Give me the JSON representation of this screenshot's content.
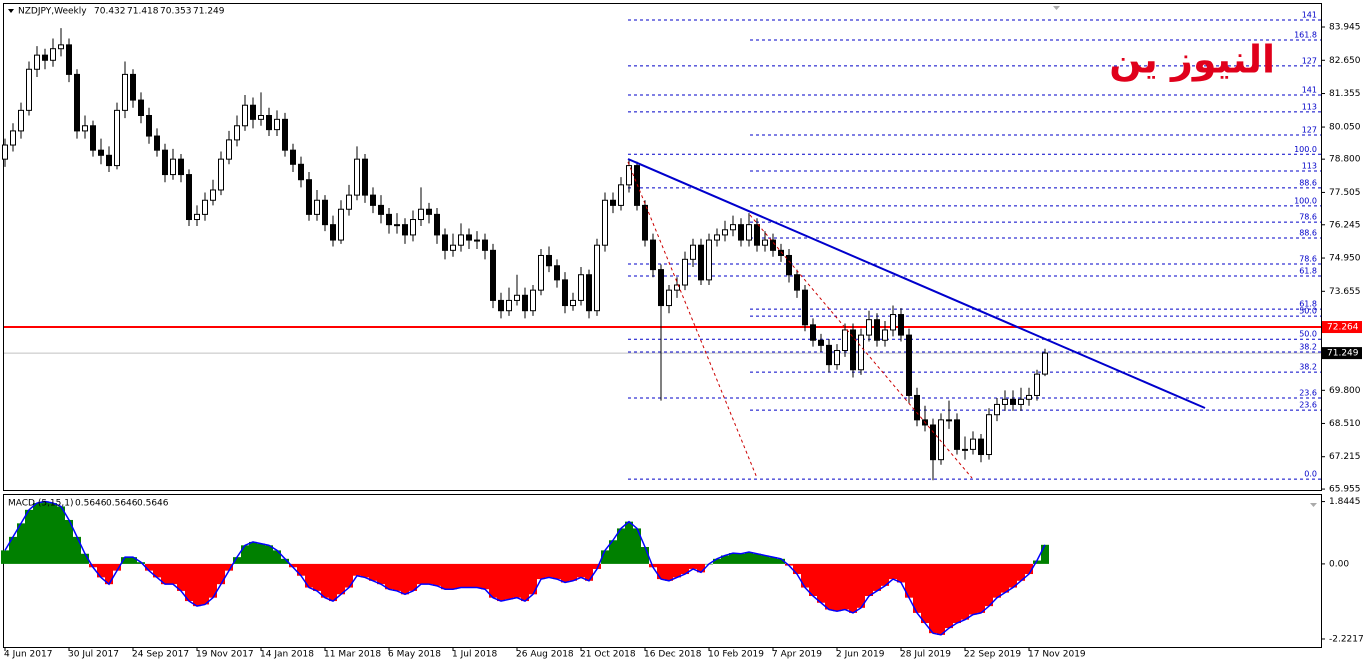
{
  "chart_data": [
    {
      "type": "candlestick",
      "symbol": "NZDJPY,Weekly",
      "header_values": [
        70.432,
        71.418,
        70.353,
        71.249
      ],
      "watermark": "النيوز ين",
      "categories": [
        "4 Jun 2017",
        null,
        null,
        null,
        null,
        null,
        null,
        null,
        "30 Jul 2017",
        null,
        null,
        null,
        null,
        null,
        null,
        null,
        "24 Sep 2017",
        null,
        null,
        null,
        null,
        null,
        null,
        null,
        "19 Nov 2017",
        null,
        null,
        null,
        null,
        null,
        null,
        null,
        "14 Jan 2018",
        null,
        null,
        null,
        null,
        null,
        null,
        null,
        "11 Mar 2018",
        null,
        null,
        null,
        null,
        null,
        null,
        null,
        "6 May 2018",
        null,
        null,
        null,
        null,
        null,
        null,
        null,
        "1 Jul 2018",
        null,
        null,
        null,
        null,
        null,
        null,
        null,
        "26 Aug 2018",
        null,
        null,
        null,
        null,
        null,
        null,
        null,
        "21 Oct 2018",
        null,
        null,
        null,
        null,
        null,
        null,
        null,
        "16 Dec 2018",
        null,
        null,
        null,
        null,
        null,
        null,
        null,
        "10 Feb 2019",
        null,
        null,
        null,
        null,
        null,
        null,
        null,
        "7 Apr 2019",
        null,
        null,
        null,
        null,
        null,
        null,
        null,
        "2 Jun 2019",
        null,
        null,
        null,
        null,
        null,
        null,
        null,
        "28 Jul 2019",
        null,
        null,
        null,
        null,
        null,
        null,
        null,
        "22 Sep 2019",
        null,
        null,
        null,
        null,
        null,
        null,
        null,
        "17 Nov 2019",
        null,
        null
      ],
      "ohlc": [
        [
          78.8,
          79.6,
          78.5,
          79.35
        ],
        [
          79.35,
          80.2,
          79.1,
          79.9
        ],
        [
          79.9,
          81.0,
          79.6,
          80.7
        ],
        [
          80.7,
          82.6,
          80.5,
          82.3
        ],
        [
          82.3,
          83.2,
          82.0,
          82.85
        ],
        [
          82.85,
          83.1,
          82.3,
          82.65
        ],
        [
          82.65,
          83.5,
          82.4,
          83.1
        ],
        [
          83.1,
          83.9,
          82.8,
          83.25
        ],
        [
          83.25,
          83.5,
          81.8,
          82.1
        ],
        [
          82.1,
          82.3,
          79.6,
          79.9
        ],
        [
          79.9,
          80.5,
          79.6,
          80.1
        ],
        [
          80.1,
          80.3,
          78.9,
          79.15
        ],
        [
          79.15,
          79.6,
          78.6,
          78.95
        ],
        [
          78.95,
          79.3,
          78.3,
          78.55
        ],
        [
          78.55,
          81.0,
          78.4,
          80.7
        ],
        [
          80.7,
          82.6,
          80.4,
          82.1
        ],
        [
          82.1,
          82.3,
          80.8,
          81.1
        ],
        [
          81.1,
          81.4,
          80.2,
          80.5
        ],
        [
          80.5,
          80.8,
          79.4,
          79.7
        ],
        [
          79.7,
          80.0,
          78.9,
          79.15
        ],
        [
          79.15,
          79.4,
          77.9,
          78.2
        ],
        [
          78.2,
          79.2,
          78.0,
          78.8
        ],
        [
          78.8,
          79.0,
          77.9,
          78.2
        ],
        [
          78.2,
          78.4,
          76.2,
          76.45
        ],
        [
          76.45,
          77.0,
          76.2,
          76.65
        ],
        [
          76.65,
          77.5,
          76.4,
          77.2
        ],
        [
          77.2,
          78.0,
          77.0,
          77.6
        ],
        [
          77.6,
          79.1,
          77.4,
          78.8
        ],
        [
          78.8,
          79.9,
          78.6,
          79.55
        ],
        [
          79.55,
          80.5,
          79.3,
          80.1
        ],
        [
          80.1,
          81.3,
          79.9,
          80.9
        ],
        [
          80.9,
          81.2,
          80.0,
          80.35
        ],
        [
          80.35,
          81.4,
          80.1,
          80.5
        ],
        [
          80.5,
          80.8,
          79.7,
          79.95
        ],
        [
          79.95,
          80.7,
          79.7,
          80.35
        ],
        [
          80.35,
          80.6,
          78.9,
          79.15
        ],
        [
          79.15,
          79.4,
          78.3,
          78.6
        ],
        [
          78.6,
          78.9,
          77.7,
          78.0
        ],
        [
          78.0,
          78.3,
          76.4,
          76.65
        ],
        [
          76.65,
          77.6,
          76.4,
          77.2
        ],
        [
          77.2,
          77.4,
          76.0,
          76.25
        ],
        [
          76.25,
          76.6,
          75.4,
          75.65
        ],
        [
          75.65,
          77.2,
          75.5,
          76.85
        ],
        [
          76.85,
          77.8,
          76.6,
          77.4
        ],
        [
          77.4,
          79.3,
          77.2,
          78.8
        ],
        [
          78.8,
          79.0,
          77.1,
          77.4
        ],
        [
          77.4,
          77.7,
          76.7,
          77.0
        ],
        [
          77.0,
          77.4,
          76.3,
          76.65
        ],
        [
          76.65,
          76.9,
          75.9,
          76.25
        ],
        [
          76.25,
          76.7,
          75.9,
          76.25
        ],
        [
          76.25,
          76.5,
          75.5,
          75.85
        ],
        [
          75.85,
          76.8,
          75.6,
          76.45
        ],
        [
          76.45,
          77.7,
          76.2,
          76.85
        ],
        [
          76.85,
          77.1,
          76.3,
          76.65
        ],
        [
          76.65,
          76.9,
          75.5,
          75.85
        ],
        [
          75.85,
          76.1,
          74.9,
          75.25
        ],
        [
          75.25,
          75.9,
          75.0,
          75.45
        ],
        [
          75.45,
          76.3,
          75.2,
          75.85
        ],
        [
          75.85,
          76.1,
          75.3,
          75.65
        ],
        [
          75.65,
          76.0,
          75.3,
          75.65
        ],
        [
          75.65,
          75.9,
          74.9,
          75.25
        ],
        [
          75.25,
          75.5,
          73.0,
          73.3
        ],
        [
          73.3,
          73.6,
          72.6,
          72.9
        ],
        [
          72.9,
          73.8,
          72.7,
          73.3
        ],
        [
          73.3,
          74.3,
          73.1,
          73.5
        ],
        [
          73.5,
          73.8,
          72.6,
          72.9
        ],
        [
          72.9,
          73.9,
          72.7,
          73.7
        ],
        [
          73.7,
          75.3,
          73.5,
          75.05
        ],
        [
          75.05,
          75.4,
          74.4,
          74.65
        ],
        [
          74.65,
          74.9,
          73.8,
          74.1
        ],
        [
          74.1,
          74.4,
          72.8,
          73.1
        ],
        [
          73.1,
          73.6,
          72.9,
          73.3
        ],
        [
          73.3,
          74.6,
          73.1,
          74.3
        ],
        [
          74.3,
          74.5,
          72.6,
          72.9
        ],
        [
          72.9,
          75.7,
          72.7,
          75.45
        ],
        [
          75.45,
          77.5,
          75.2,
          77.2
        ],
        [
          77.2,
          77.5,
          76.7,
          77.0
        ],
        [
          77.0,
          78.1,
          76.8,
          77.8
        ],
        [
          77.8,
          78.8,
          77.5,
          78.55
        ],
        [
          78.55,
          78.7,
          76.8,
          77.0
        ],
        [
          77.0,
          77.2,
          75.4,
          75.65
        ],
        [
          75.65,
          75.9,
          74.2,
          74.5
        ],
        [
          74.5,
          74.7,
          69.4,
          73.1
        ],
        [
          73.1,
          73.9,
          72.8,
          73.7
        ],
        [
          73.7,
          74.2,
          73.4,
          73.9
        ],
        [
          73.9,
          75.2,
          73.7,
          74.9
        ],
        [
          74.9,
          75.7,
          74.6,
          75.45
        ],
        [
          75.45,
          75.7,
          73.9,
          74.1
        ],
        [
          74.1,
          75.9,
          73.9,
          75.65
        ],
        [
          75.65,
          76.1,
          75.4,
          75.85
        ],
        [
          75.85,
          76.4,
          75.6,
          76.05
        ],
        [
          76.05,
          76.6,
          75.8,
          76.25
        ],
        [
          76.25,
          76.5,
          75.4,
          75.65
        ],
        [
          75.65,
          76.7,
          75.4,
          76.25
        ],
        [
          76.25,
          76.5,
          75.2,
          75.45
        ],
        [
          75.45,
          76.0,
          75.2,
          75.65
        ],
        [
          75.65,
          75.9,
          75.0,
          75.25
        ],
        [
          75.25,
          75.5,
          74.8,
          75.05
        ],
        [
          75.05,
          75.3,
          74.0,
          74.3
        ],
        [
          74.3,
          74.5,
          73.4,
          73.7
        ],
        [
          73.7,
          73.9,
          72.1,
          72.35
        ],
        [
          72.35,
          72.6,
          71.5,
          71.75
        ],
        [
          71.75,
          72.0,
          71.3,
          71.55
        ],
        [
          71.55,
          71.8,
          70.5,
          70.8
        ],
        [
          70.8,
          71.6,
          70.6,
          71.35
        ],
        [
          71.35,
          72.4,
          71.1,
          72.15
        ],
        [
          72.15,
          72.4,
          70.3,
          70.6
        ],
        [
          70.6,
          72.2,
          70.4,
          71.95
        ],
        [
          71.95,
          72.9,
          71.7,
          72.55
        ],
        [
          72.55,
          72.8,
          71.5,
          71.75
        ],
        [
          71.75,
          72.5,
          71.5,
          72.15
        ],
        [
          72.15,
          73.1,
          71.9,
          72.75
        ],
        [
          72.75,
          73.0,
          71.7,
          71.95
        ],
        [
          71.95,
          72.2,
          69.3,
          69.6
        ],
        [
          69.6,
          69.9,
          68.4,
          68.65
        ],
        [
          68.65,
          69.2,
          68.2,
          68.45
        ],
        [
          68.45,
          68.7,
          66.3,
          67.1
        ],
        [
          67.1,
          68.9,
          66.9,
          68.65
        ],
        [
          68.65,
          69.4,
          68.3,
          68.65
        ],
        [
          68.65,
          68.9,
          67.3,
          67.5
        ],
        [
          67.5,
          68.0,
          67.1,
          67.5
        ],
        [
          67.5,
          68.2,
          67.3,
          67.9
        ],
        [
          67.9,
          68.1,
          67.0,
          67.3
        ],
        [
          67.3,
          69.1,
          67.1,
          68.85
        ],
        [
          68.85,
          69.5,
          68.6,
          69.25
        ],
        [
          69.25,
          69.8,
          69.0,
          69.45
        ],
        [
          69.45,
          69.8,
          69.0,
          69.25
        ],
        [
          69.25,
          69.9,
          69.0,
          69.45
        ],
        [
          69.45,
          69.9,
          69.2,
          69.6
        ],
        [
          69.6,
          70.6,
          69.4,
          70.43
        ],
        [
          70.432,
          71.418,
          70.353,
          71.249
        ]
      ],
      "up_color": "#ffffff",
      "down_color": "#000000",
      "ylim": [
        65.88,
        84.88
      ],
      "yticks": [
        83.945,
        {
          "value": 82.65,
          "label": "82.650"
        },
        81.355,
        {
          "value": 80.05,
          "label": "80.050"
        },
        {
          "value": 78.8,
          "label": "78.800"
        },
        77.505,
        76.245,
        {
          "value": 74.95,
          "label": "74.950"
        },
        73.655,
        {
          "value": 69.8,
          "label": "69.800"
        },
        {
          "value": 68.51,
          "label": "68.510"
        },
        67.215,
        65.955
      ],
      "hline": {
        "value": 72.264,
        "color": "#ff0000"
      },
      "current_price": 71.249,
      "fib_a": [
        {
          "label": "141",
          "price": 84.22
        },
        {
          "label": "127",
          "price": 82.43
        },
        {
          "label": "141",
          "price": 81.3
        },
        {
          "label": "113",
          "price": 80.64
        },
        {
          "label": "100.0",
          "price": 78.99
        },
        {
          "label": "88.6",
          "price": 77.68
        },
        {
          "label": "78.6",
          "price": 74.72
        },
        {
          "label": "61.8",
          "price": 74.25
        },
        {
          "label": "50.0",
          "price": 71.79
        },
        {
          "label": "38.2",
          "price": 71.29
        },
        {
          "label": "23.6",
          "price": 69.5
        },
        {
          "label": "0.0",
          "price": 66.34
        }
      ],
      "fib_b": [
        {
          "label": "161.8",
          "price": 83.44
        },
        {
          "label": "127",
          "price": 79.74
        },
        {
          "label": "113",
          "price": 78.34
        },
        {
          "label": "100.0",
          "price": 76.98
        },
        {
          "label": "78.6",
          "price": 76.35
        },
        {
          "label": "88.6",
          "price": 75.73
        },
        {
          "label": "61.8",
          "price": 72.96
        },
        {
          "label": "50.0",
          "price": 72.69
        },
        {
          "label": "38.2",
          "price": 70.51
        },
        {
          "label": "23.6",
          "price": 69.03
        }
      ],
      "fib_color": "#0000c8"
    },
    {
      "type": "macd",
      "name": "MACD (5,15,1)",
      "header_values": [
        0.5646,
        0.5646,
        0.5646
      ],
      "values": [
        0.4,
        0.8,
        1.2,
        1.6,
        1.8,
        1.85,
        1.8,
        1.7,
        1.3,
        0.8,
        0.3,
        -0.1,
        -0.4,
        -0.6,
        -0.2,
        0.2,
        0.2,
        0.05,
        -0.2,
        -0.4,
        -0.6,
        -0.6,
        -0.8,
        -1.1,
        -1.25,
        -1.2,
        -1.0,
        -0.6,
        -0.2,
        0.2,
        0.55,
        0.65,
        0.6,
        0.55,
        0.4,
        0.15,
        -0.1,
        -0.35,
        -0.7,
        -0.8,
        -1.0,
        -1.1,
        -0.9,
        -0.7,
        -0.35,
        -0.4,
        -0.5,
        -0.6,
        -0.75,
        -0.8,
        -0.9,
        -0.8,
        -0.6,
        -0.6,
        -0.65,
        -0.75,
        -0.75,
        -0.7,
        -0.7,
        -0.7,
        -0.75,
        -1.0,
        -1.1,
        -1.05,
        -1.0,
        -1.1,
        -0.9,
        -0.45,
        -0.4,
        -0.45,
        -0.55,
        -0.5,
        -0.4,
        -0.5,
        -0.15,
        0.4,
        0.7,
        1.05,
        1.25,
        1.05,
        0.5,
        -0.1,
        -0.45,
        -0.5,
        -0.4,
        -0.3,
        -0.15,
        -0.25,
        0.0,
        0.15,
        0.25,
        0.32,
        0.3,
        0.35,
        0.3,
        0.25,
        0.2,
        0.15,
        -0.05,
        -0.3,
        -0.7,
        -0.95,
        -1.15,
        -1.35,
        -1.4,
        -1.35,
        -1.45,
        -1.3,
        -0.95,
        -0.8,
        -0.65,
        -0.45,
        -0.55,
        -1.0,
        -1.45,
        -1.75,
        -2.05,
        -2.1,
        -1.9,
        -1.75,
        -1.65,
        -1.5,
        -1.45,
        -1.25,
        -1.0,
        -0.85,
        -0.7,
        -0.5,
        -0.3,
        0.1,
        0.5646
      ],
      "up_color": "#008000",
      "down_color": "#ff0000",
      "line_color": "#0000ff",
      "ylim": [
        -2.4,
        1.95
      ],
      "yticks": [
        1.8445,
        {
          "value": 0,
          "label": "0.00"
        },
        -2.2217
      ]
    }
  ]
}
